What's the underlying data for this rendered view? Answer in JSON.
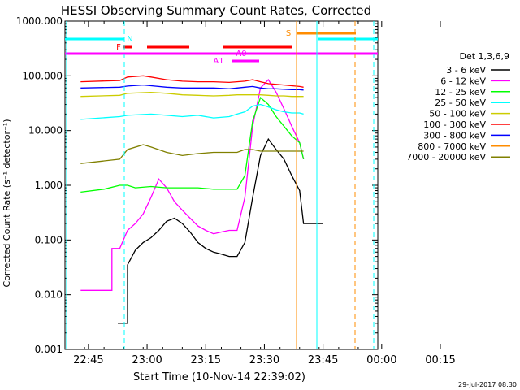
{
  "chart_data": {
    "type": "line",
    "title": "HESSI Observing Summary Count Rates, Corrected",
    "xlabel": "Start Time (10-Nov-14 22:39:02)",
    "ylabel": "Corrected Count Rate (s⁻¹ detector⁻¹)",
    "yscale": "log",
    "ylim": [
      0.001,
      1000
    ],
    "xlim_minutes": [
      -30,
      50
    ],
    "ytick_labels": [
      "1000.000",
      "100.000",
      "10.000",
      "1.000",
      "0.100",
      "0.010",
      "0.001"
    ],
    "xtick_labels": [
      "22:45",
      "23:00",
      "23:15",
      "23:30",
      "23:45",
      "00:00",
      "00:15"
    ],
    "legend_title": "Det 1,3,6,9",
    "legend_position": "right",
    "footer": "29-Jul-2017 08:30",
    "flag_labels": {
      "F": "F",
      "N": "N",
      "S": "S",
      "A1": "A1",
      "A0": "A0"
    },
    "series": [
      {
        "name": "3 - 6 keV",
        "color": "#000000",
        "x": [
          -16.5,
          -14.0,
          -14.0,
          -12,
          -10,
          -8,
          -6,
          -4,
          -2,
          0,
          2,
          4,
          6,
          8,
          10,
          12,
          14,
          16,
          18,
          20,
          22,
          24,
          26,
          28,
          30,
          31,
          36
        ],
        "y": [
          0.003,
          0.003,
          0.035,
          0.065,
          0.09,
          0.11,
          0.15,
          0.22,
          0.25,
          0.2,
          0.14,
          0.09,
          0.07,
          0.06,
          0.055,
          0.05,
          0.05,
          0.09,
          0.6,
          3.5,
          7,
          4.5,
          3,
          1.5,
          0.8,
          0.2,
          0.2
        ]
      },
      {
        "name": "6 - 12 keV",
        "color": "#ff00ff",
        "x": [
          -26,
          -18,
          -18,
          -16,
          -14,
          -12,
          -10,
          -8,
          -6,
          -4,
          -2,
          0,
          2,
          4,
          6,
          8,
          10,
          12,
          14,
          16,
          18,
          20,
          22,
          24,
          26,
          28,
          30,
          31
        ],
        "y": [
          0.012,
          0.012,
          0.07,
          0.07,
          0.15,
          0.2,
          0.3,
          0.6,
          1.3,
          0.9,
          0.5,
          0.35,
          0.25,
          0.18,
          0.15,
          0.13,
          0.14,
          0.15,
          0.15,
          0.6,
          12,
          60,
          85,
          50,
          25,
          12,
          6,
          3
        ]
      },
      {
        "name": "12 - 25 keV",
        "color": "#00ff00",
        "x": [
          -26,
          -20,
          -16,
          -14,
          -12,
          -8,
          -4,
          0,
          4,
          8,
          12,
          14,
          16,
          18,
          20,
          22,
          24,
          26,
          28,
          30,
          31
        ],
        "y": [
          0.75,
          0.85,
          1.0,
          1.0,
          0.9,
          0.95,
          0.9,
          0.9,
          0.9,
          0.85,
          0.85,
          0.85,
          1.5,
          15,
          40,
          30,
          18,
          12,
          8,
          6,
          3
        ]
      },
      {
        "name": "25 - 50 keV",
        "color": "#00ffff",
        "x": [
          -26,
          -16,
          -14,
          -8,
          -4,
          0,
          4,
          8,
          12,
          14,
          16,
          18,
          20,
          22,
          24,
          26,
          28,
          30,
          31
        ],
        "y": [
          16,
          18,
          19,
          20,
          19,
          18,
          19,
          17,
          18,
          20,
          22,
          28,
          30,
          27,
          24,
          22,
          21,
          21,
          20
        ]
      },
      {
        "name": "50 - 100 keV",
        "color": "#cccc00",
        "x": [
          -26,
          -16,
          -14,
          -8,
          -4,
          0,
          4,
          8,
          12,
          14,
          16,
          18,
          20,
          22,
          24,
          26,
          28,
          30,
          31
        ],
        "y": [
          42,
          44,
          48,
          50,
          48,
          45,
          44,
          43,
          44,
          45,
          45,
          45,
          45,
          44,
          43,
          43,
          42,
          42,
          42
        ]
      },
      {
        "name": "100 - 300 keV",
        "color": "#ff0000",
        "x": [
          -26,
          -16,
          -14,
          -10,
          -8,
          -4,
          0,
          4,
          8,
          12,
          14,
          16,
          18,
          20,
          22,
          24,
          26,
          28,
          30,
          31
        ],
        "y": [
          78,
          82,
          95,
          100,
          95,
          85,
          80,
          78,
          78,
          76,
          78,
          80,
          85,
          78,
          72,
          70,
          68,
          66,
          64,
          62
        ]
      },
      {
        "name": "300 - 800 keV",
        "color": "#0000ff",
        "x": [
          -26,
          -16,
          -14,
          -10,
          -8,
          -4,
          0,
          4,
          8,
          12,
          14,
          16,
          18,
          20,
          22,
          24,
          26,
          28,
          30,
          31
        ],
        "y": [
          60,
          62,
          65,
          68,
          66,
          62,
          60,
          60,
          60,
          58,
          60,
          62,
          64,
          60,
          58,
          58,
          57,
          56,
          56,
          55
        ]
      },
      {
        "name": "800 - 7000 keV",
        "color": "#ff8c00",
        "x": [],
        "y": []
      },
      {
        "name": "7000 - 20000 keV",
        "color": "#808000",
        "x": [
          -26,
          -16,
          -14,
          -10,
          -8,
          -4,
          0,
          4,
          8,
          12,
          14,
          16,
          18,
          20,
          22,
          24,
          26,
          28,
          30,
          31
        ],
        "y": [
          2.5,
          3.0,
          4.5,
          5.5,
          5.0,
          4.0,
          3.5,
          3.8,
          4.0,
          4.0,
          4.0,
          4.5,
          4.5,
          4.2,
          4.2,
          4.2,
          4.2,
          4.2,
          4.2,
          4.2
        ]
      }
    ]
  }
}
